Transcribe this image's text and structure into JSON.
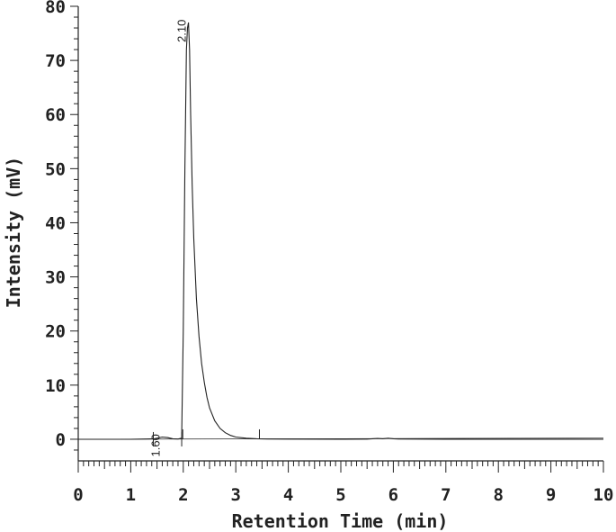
{
  "chart_data": {
    "type": "line",
    "xlabel": "Retention Time (min)",
    "ylabel": "Intensity (mV)",
    "xlim": [
      0,
      10
    ],
    "ylim": [
      -4,
      80
    ],
    "x_ticks": [
      "0",
      "1",
      "2",
      "3",
      "4",
      "5",
      "6",
      "7",
      "8",
      "9",
      "10"
    ],
    "y_ticks": [
      "0",
      "10",
      "20",
      "30",
      "40",
      "50",
      "60",
      "70",
      "80"
    ],
    "grid": false,
    "legend": "none",
    "line_color": "#222222",
    "series": [
      {
        "x": [
          0,
          0.5,
          1.0,
          1.3,
          1.45,
          1.55,
          1.6,
          1.7,
          1.8,
          1.9,
          1.97,
          2.0,
          2.03,
          2.06,
          2.08,
          2.1,
          2.12,
          2.14,
          2.17,
          2.2,
          2.25,
          2.3,
          2.35,
          2.4,
          2.45,
          2.5,
          2.6,
          2.7,
          2.8,
          2.9,
          3.0,
          3.2,
          3.4,
          3.6,
          4.0,
          5.0,
          5.5,
          5.7,
          5.8,
          5.9,
          6.0,
          6.1,
          7.0,
          8.0,
          9.0,
          10.0
        ],
        "y": [
          0,
          0,
          0,
          0.05,
          0.1,
          0.3,
          0.4,
          0.3,
          0.1,
          0.05,
          0.2,
          20,
          50,
          72,
          76,
          77,
          72,
          60,
          47,
          37,
          26,
          19,
          14,
          10.5,
          7.8,
          5.8,
          3.4,
          2.0,
          1.2,
          0.7,
          0.4,
          0.2,
          0.1,
          0.05,
          0.02,
          0,
          0.03,
          0.15,
          0.1,
          0.2,
          0.1,
          0.05,
          0,
          0,
          0,
          0
        ]
      }
    ],
    "baseline": {
      "x": [
        0,
        10
      ],
      "y": [
        0,
        0.2
      ]
    },
    "peak_labels": [
      {
        "text": "1.60",
        "x": 1.6,
        "y": 0.4
      },
      {
        "text": "2.10",
        "x": 2.1,
        "y": 77
      }
    ],
    "integration_markers": [
      {
        "x": 1.43,
        "kind": "start"
      },
      {
        "x": 1.97,
        "kind": "start"
      },
      {
        "x": 1.99,
        "kind": "end"
      },
      {
        "x": 3.45,
        "kind": "end"
      }
    ]
  }
}
